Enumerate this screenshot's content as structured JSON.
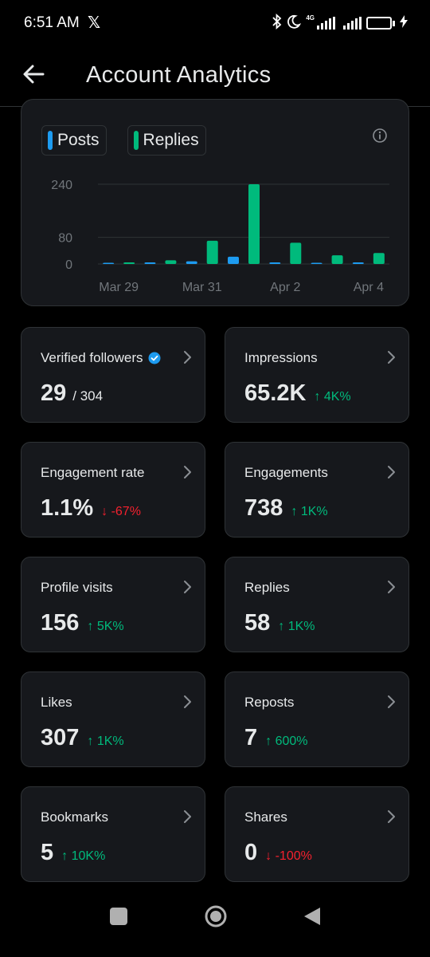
{
  "status_bar": {
    "time": "6:51 AM",
    "x_logo": "𝕏",
    "network": "4G",
    "battery": "94"
  },
  "header": {
    "title": "Account Analytics"
  },
  "chart_data": {
    "type": "bar",
    "title": "",
    "xlabel": "",
    "ylabel": "",
    "legend_position": "top-left",
    "grid": true,
    "y_ticks": [
      0,
      80,
      240
    ],
    "ylim": [
      0,
      250
    ],
    "x": [
      "Mar 29",
      "Mar 30",
      "Mar 31",
      "Apr 1",
      "Apr 2",
      "Apr 3",
      "Apr 4"
    ],
    "x_tick_labels": [
      "Mar 29",
      "Mar 31",
      "Apr 2",
      "Apr 4"
    ],
    "series": [
      {
        "name": "Posts",
        "color": "#1d9bf0",
        "values": [
          0,
          1,
          8,
          22,
          4,
          0,
          4
        ]
      },
      {
        "name": "Replies",
        "color": "#00ba7c",
        "values": [
          4,
          11,
          70,
          240,
          64,
          26,
          33
        ]
      }
    ]
  },
  "stats": [
    {
      "label": "Verified followers",
      "value": "29",
      "sub": "/ 304",
      "delta": "",
      "trend": "",
      "verified": true
    },
    {
      "label": "Impressions",
      "value": "65.2K",
      "sub": "",
      "delta": "4K%",
      "trend": "up"
    },
    {
      "label": "Engagement rate",
      "value": "1.1%",
      "sub": "",
      "delta": "-67%",
      "trend": "down"
    },
    {
      "label": "Engagements",
      "value": "738",
      "sub": "",
      "delta": "1K%",
      "trend": "up"
    },
    {
      "label": "Profile visits",
      "value": "156",
      "sub": "",
      "delta": "5K%",
      "trend": "up"
    },
    {
      "label": "Replies",
      "value": "58",
      "sub": "",
      "delta": "1K%",
      "trend": "up"
    },
    {
      "label": "Likes",
      "value": "307",
      "sub": "",
      "delta": "1K%",
      "trend": "up"
    },
    {
      "label": "Reposts",
      "value": "7",
      "sub": "",
      "delta": "600%",
      "trend": "up"
    },
    {
      "label": "Bookmarks",
      "value": "5",
      "sub": "",
      "delta": "10K%",
      "trend": "up"
    },
    {
      "label": "Shares",
      "value": "0",
      "sub": "",
      "delta": "-100%",
      "trend": "down"
    }
  ],
  "colors": {
    "posts": "#1d9bf0",
    "replies": "#00ba7c",
    "up": "#00ba7c",
    "down": "#f4212e"
  }
}
